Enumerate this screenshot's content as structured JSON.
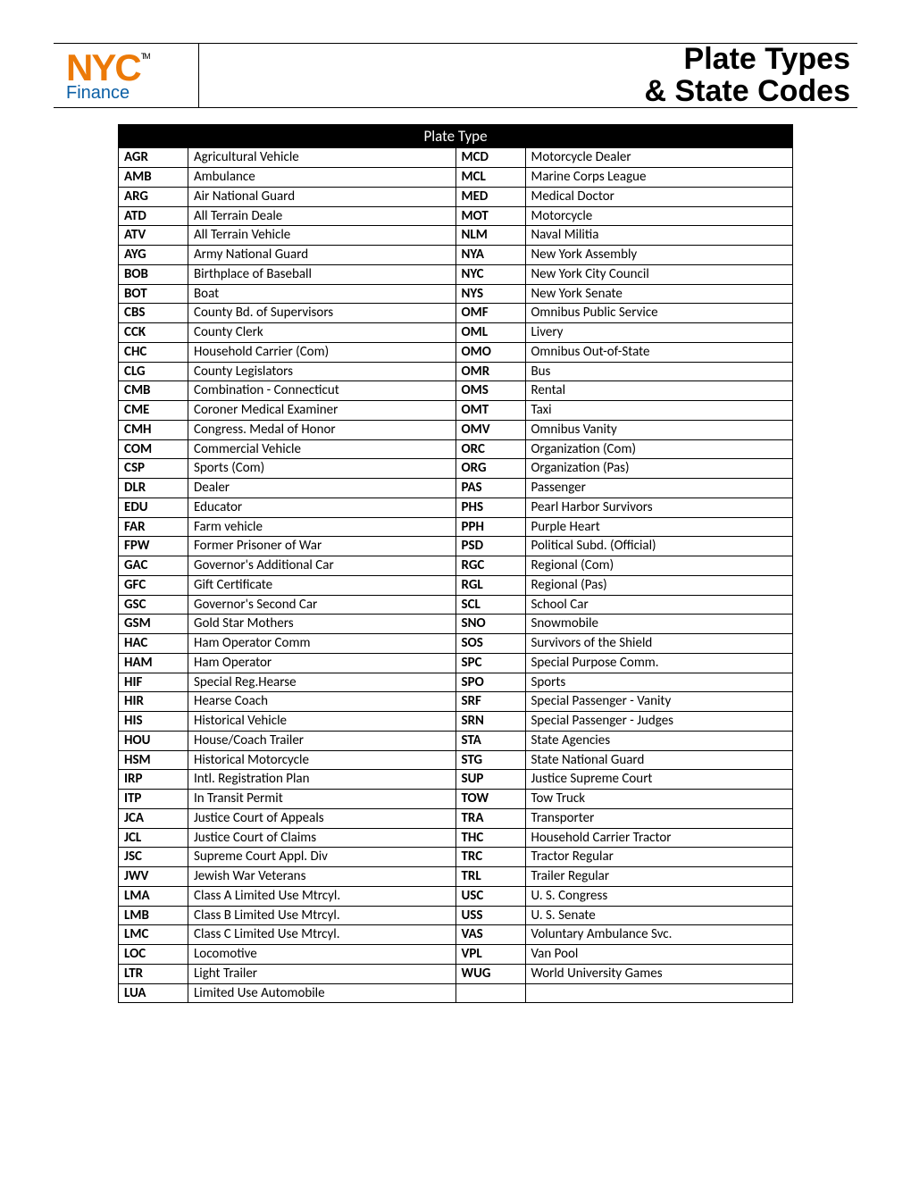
{
  "header": {
    "logo_main": "NYC",
    "logo_tm": "TM",
    "logo_sub": "Finance",
    "title_line1": "Plate Types",
    "title_line2": "& State Codes"
  },
  "table": {
    "title": "Plate Type",
    "left": [
      {
        "code": "AGR",
        "desc": "Agricultural Vehicle"
      },
      {
        "code": "AMB",
        "desc": "Ambulance"
      },
      {
        "code": "ARG",
        "desc": "Air National Guard"
      },
      {
        "code": "ATD",
        "desc": "All Terrain Deale"
      },
      {
        "code": "ATV",
        "desc": "All Terrain Vehicle"
      },
      {
        "code": "AYG",
        "desc": "Army National Guard"
      },
      {
        "code": "BOB",
        "desc": "Birthplace of Baseball"
      },
      {
        "code": "BOT",
        "desc": "Boat"
      },
      {
        "code": "CBS",
        "desc": "County Bd. of Supervisors"
      },
      {
        "code": "CCK",
        "desc": "County Clerk"
      },
      {
        "code": "CHC",
        "desc": " Household Carrier (Com)"
      },
      {
        "code": "CLG",
        "desc": "County Legislators"
      },
      {
        "code": "CMB",
        "desc": "Combination - Connecticut"
      },
      {
        "code": "CME",
        "desc": " Coroner Medical Examiner"
      },
      {
        "code": "CMH",
        "desc": "Congress. Medal of Honor"
      },
      {
        "code": "COM",
        "desc": "Commercial Vehicle"
      },
      {
        "code": "CSP",
        "desc": "Sports (Com)"
      },
      {
        "code": "DLR",
        "desc": "Dealer"
      },
      {
        "code": "EDU",
        "desc": "Educator"
      },
      {
        "code": "FAR",
        "desc": "Farm vehicle"
      },
      {
        "code": "FPW",
        "desc": "Former Prisoner of War"
      },
      {
        "code": "GAC",
        "desc": "Governor's Additional Car"
      },
      {
        "code": "GFC",
        "desc": "Gift Certificate"
      },
      {
        "code": "GSC",
        "desc": "Governor's Second Car"
      },
      {
        "code": "GSM",
        "desc": "Gold Star Mothers"
      },
      {
        "code": "HAC",
        "desc": "Ham Operator Comm"
      },
      {
        "code": "HAM",
        "desc": "Ham Operator"
      },
      {
        "code": "HIF",
        "desc": "Special Reg.Hearse"
      },
      {
        "code": "HIR",
        "desc": "Hearse Coach"
      },
      {
        "code": "HIS",
        "desc": "Historical Vehicle"
      },
      {
        "code": "HOU",
        "desc": "House/Coach Trailer"
      },
      {
        "code": "HSM",
        "desc": "Historical Motorcycle"
      },
      {
        "code": "IRP",
        "desc": "Intl. Registration Plan"
      },
      {
        "code": "ITP",
        "desc": "In Transit Permit"
      },
      {
        "code": "JCA",
        "desc": "Justice Court of Appeals"
      },
      {
        "code": "JCL",
        "desc": "Justice Court of Claims"
      },
      {
        "code": "JSC",
        "desc": "Supreme Court Appl. Div"
      },
      {
        "code": "JWV",
        "desc": "Jewish War Veterans"
      },
      {
        "code": "LMA",
        "desc": "Class A Limited Use Mtrcyl."
      },
      {
        "code": "LMB",
        "desc": "Class B Limited Use Mtrcyl."
      },
      {
        "code": "LMC",
        "desc": "Class C Limited Use Mtrcyl."
      },
      {
        "code": "LOC",
        "desc": "Locomotive"
      },
      {
        "code": "LTR",
        "desc": "Light Trailer"
      },
      {
        "code": "LUA",
        "desc": "Limited Use Automobile"
      }
    ],
    "right": [
      {
        "code": "MCD",
        "desc": "Motorcycle Dealer"
      },
      {
        "code": "MCL",
        "desc": "Marine Corps League"
      },
      {
        "code": "MED",
        "desc": "Medical Doctor"
      },
      {
        "code": "MOT",
        "desc": "Motorcycle"
      },
      {
        "code": "NLM",
        "desc": "Naval Militia"
      },
      {
        "code": "NYA",
        "desc": "New York Assembly"
      },
      {
        "code": "NYC",
        "desc": "New York City Council"
      },
      {
        "code": "NYS",
        "desc": "New York Senate"
      },
      {
        "code": "OMF",
        "desc": "Omnibus Public Service"
      },
      {
        "code": "OML",
        "desc": "Livery"
      },
      {
        "code": "OMO",
        "desc": "Omnibus Out-of-State"
      },
      {
        "code": "OMR",
        "desc": "Bus"
      },
      {
        "code": "OMS",
        "desc": "Rental"
      },
      {
        "code": "OMT",
        "desc": "Taxi"
      },
      {
        "code": "OMV",
        "desc": "Omnibus Vanity"
      },
      {
        "code": "ORC",
        "desc": "Organization (Com)"
      },
      {
        "code": "ORG",
        "desc": "Organization (Pas)"
      },
      {
        "code": "PAS",
        "desc": "Passenger"
      },
      {
        "code": "PHS",
        "desc": "Pearl Harbor Survivors"
      },
      {
        "code": "PPH",
        "desc": "Purple Heart"
      },
      {
        "code": "PSD",
        "desc": "Political Subd. (Official)"
      },
      {
        "code": "RGC",
        "desc": "Regional (Com)"
      },
      {
        "code": "RGL",
        "desc": "Regional (Pas)"
      },
      {
        "code": "SCL",
        "desc": "School Car"
      },
      {
        "code": "SNO",
        "desc": "Snowmobile"
      },
      {
        "code": "SOS",
        "desc": "Survivors of the Shield"
      },
      {
        "code": "SPC",
        "desc": "Special Purpose Comm."
      },
      {
        "code": "SPO",
        "desc": "Sports"
      },
      {
        "code": "SRF",
        "desc": "Special Passenger - Vanity"
      },
      {
        "code": "SRN",
        "desc": "Special Passenger - Judges"
      },
      {
        "code": "STA",
        "desc": "State Agencies"
      },
      {
        "code": "STG",
        "desc": "State National Guard"
      },
      {
        "code": "SUP",
        "desc": "Justice Supreme Court"
      },
      {
        "code": "TOW",
        "desc": "Tow Truck"
      },
      {
        "code": "TRA",
        "desc": "Transporter"
      },
      {
        "code": "THC",
        "desc": "Household Carrier Tractor"
      },
      {
        "code": "TRC",
        "desc": "Tractor Regular"
      },
      {
        "code": "TRL",
        "desc": "Trailer Regular"
      },
      {
        "code": "USC",
        "desc": "U. S. Congress"
      },
      {
        "code": "USS",
        "desc": "U. S. Senate"
      },
      {
        "code": "VAS",
        "desc": "Voluntary Ambulance Svc."
      },
      {
        "code": "VPL",
        "desc": "Van Pool"
      },
      {
        "code": "WUG",
        "desc": "World University Games"
      },
      {
        "code": "",
        "desc": ""
      }
    ]
  },
  "style": {
    "orange": "#ec7a08",
    "blue": "#0b5fa5",
    "black": "#000000",
    "white": "#ffffff"
  }
}
